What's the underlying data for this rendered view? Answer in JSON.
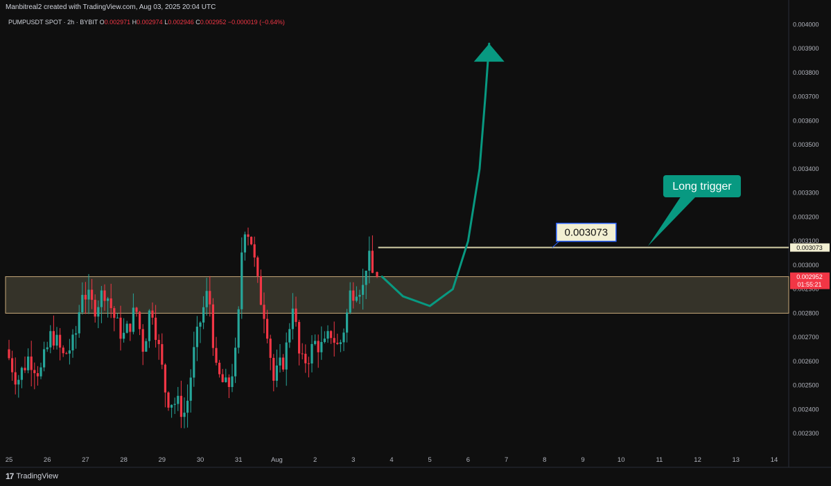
{
  "header": {
    "attribution": "Manbitreal2 created with TradingView.com, Aug 03, 2025 20:04 UTC"
  },
  "symbol_bar": {
    "symbol": "PUMPUSDT SPOT · 2h · BYBIT",
    "o_label": "O",
    "o_value": "0.002971",
    "h_label": "H",
    "h_value": "0.002974",
    "l_label": "L",
    "l_value": "0.002946",
    "c_label": "C",
    "c_value": "0.002952",
    "change": "−0.000019 (−0.64%)"
  },
  "footer": {
    "brand": "TradingView",
    "logo": "17"
  },
  "colors": {
    "background": "#0f0f0f",
    "up": "#26a69a",
    "down": "#f23645",
    "zone_fill": "#3c3a2e",
    "zone_border": "#c8a97a",
    "trigger_line": "#d6d0a8",
    "annotation_green": "#089981",
    "price_badge": "#f23645"
  },
  "chart_data": {
    "type": "candlestick",
    "y_axis": {
      "min": 0.00222,
      "max": 0.00405,
      "ticks": [
        "0.004000",
        "0.003900",
        "0.003800",
        "0.003700",
        "0.003600",
        "0.003500",
        "0.003400",
        "0.003300",
        "0.003200",
        "0.003100",
        "0.003000",
        "0.002900",
        "0.002800",
        "0.002700",
        "0.002600",
        "0.002500",
        "0.002400",
        "0.002300"
      ]
    },
    "x_axis": {
      "labels": [
        {
          "label": "25",
          "day": 0
        },
        {
          "label": "26",
          "day": 1
        },
        {
          "label": "27",
          "day": 2
        },
        {
          "label": "28",
          "day": 3
        },
        {
          "label": "29",
          "day": 4
        },
        {
          "label": "30",
          "day": 5
        },
        {
          "label": "31",
          "day": 6
        },
        {
          "label": "Aug",
          "day": 7
        },
        {
          "label": "2",
          "day": 8
        },
        {
          "label": "3",
          "day": 9
        },
        {
          "label": "4",
          "day": 10
        },
        {
          "label": "5",
          "day": 11
        },
        {
          "label": "6",
          "day": 12
        },
        {
          "label": "7",
          "day": 13
        },
        {
          "label": "8",
          "day": 14
        },
        {
          "label": "9",
          "day": 15
        },
        {
          "label": "10",
          "day": 16
        },
        {
          "label": "11",
          "day": 17
        },
        {
          "label": "12",
          "day": 18
        },
        {
          "label": "13",
          "day": 19
        },
        {
          "label": "14",
          "day": 20
        }
      ]
    },
    "anchors": [
      [
        0,
        0.00265
      ],
      [
        0.3,
        0.00252
      ],
      [
        0.6,
        0.00262
      ],
      [
        0.9,
        0.00255
      ],
      [
        1.2,
        0.00272
      ],
      [
        1.5,
        0.00262
      ],
      [
        1.8,
        0.00268
      ],
      [
        2.0,
        0.0029
      ],
      [
        2.3,
        0.00282
      ],
      [
        2.6,
        0.0029
      ],
      [
        2.9,
        0.00275
      ],
      [
        3.1,
        0.0027
      ],
      [
        3.4,
        0.00282
      ],
      [
        3.6,
        0.00265
      ],
      [
        3.8,
        0.00285
      ],
      [
        4.0,
        0.00265
      ],
      [
        4.2,
        0.00245
      ],
      [
        4.5,
        0.00242
      ],
      [
        4.7,
        0.00238
      ],
      [
        4.9,
        0.00262
      ],
      [
        5.1,
        0.00278
      ],
      [
        5.3,
        0.0029
      ],
      [
        5.5,
        0.00255
      ],
      [
        5.8,
        0.00248
      ],
      [
        6.0,
        0.00262
      ],
      [
        6.1,
        0.00282
      ],
      [
        6.2,
        0.00318
      ],
      [
        6.4,
        0.00312
      ],
      [
        6.6,
        0.0029
      ],
      [
        6.8,
        0.00278
      ],
      [
        7.0,
        0.00252
      ],
      [
        7.3,
        0.00262
      ],
      [
        7.5,
        0.00285
      ],
      [
        7.7,
        0.00258
      ],
      [
        7.9,
        0.00262
      ],
      [
        8.1,
        0.00268
      ],
      [
        8.3,
        0.00265
      ],
      [
        8.5,
        0.00272
      ],
      [
        8.7,
        0.00265
      ],
      [
        8.9,
        0.00278
      ],
      [
        9.0,
        0.00288
      ],
      [
        9.2,
        0.00292
      ],
      [
        9.35,
        0.0029
      ],
      [
        9.45,
        0.00306
      ],
      [
        9.55,
        0.00297
      ],
      [
        9.62,
        0.002952
      ]
    ],
    "last_candle": {
      "open": 0.002971,
      "high": 0.002974,
      "low": 0.002946,
      "close": 0.002952
    },
    "current_price": "0.002952",
    "countdown": "01:55:21",
    "zone": {
      "low": 0.0028,
      "high": 0.002952
    },
    "trigger_level": 0.003073,
    "trigger_label": "0.003073",
    "trigger_start_day": 9.65,
    "annotation": "Long trigger",
    "projection": [
      [
        9.75,
        0.002952
      ],
      [
        10.3,
        0.00287
      ],
      [
        11.0,
        0.00283
      ],
      [
        11.6,
        0.0029
      ],
      [
        12.0,
        0.0031
      ],
      [
        12.3,
        0.0034
      ],
      [
        12.45,
        0.0037
      ],
      [
        12.55,
        0.00392
      ]
    ]
  }
}
